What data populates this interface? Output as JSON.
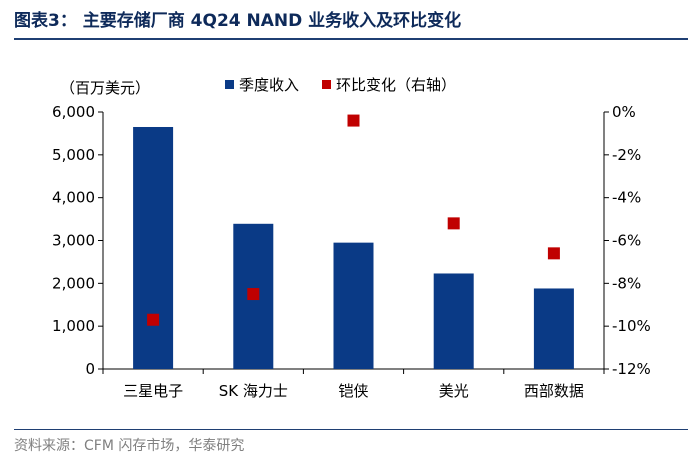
{
  "header": {
    "title": "图表3：  主要存储厂商 4Q24 NAND 业务收入及环比变化"
  },
  "footer": {
    "source": "资料来源：CFM 闪存市场，华泰研究"
  },
  "chart_data": {
    "type": "bar",
    "unit_label": "（百万美元）",
    "categories": [
      "三星电子",
      "SK 海力士",
      "铠侠",
      "美光",
      "西部数据"
    ],
    "series": [
      {
        "name": "季度收入",
        "kind": "bar",
        "axis": "left",
        "color": "#0a3a86",
        "values": [
          5650,
          3390,
          2950,
          2230,
          1880
        ]
      },
      {
        "name": "环比变化（右轴）",
        "kind": "scatter",
        "axis": "right",
        "color": "#c00000",
        "values": [
          -9.7,
          -8.5,
          -0.4,
          -5.2,
          -6.6
        ]
      }
    ],
    "y_left": {
      "min": 0,
      "max": 6000,
      "ticks": [
        0,
        1000,
        2000,
        3000,
        4000,
        5000,
        6000
      ],
      "tick_labels": [
        "0",
        "1,000",
        "2,000",
        "3,000",
        "4,000",
        "5,000",
        "6,000"
      ]
    },
    "y_right": {
      "min": -12,
      "max": 0,
      "ticks": [
        0,
        -2,
        -4,
        -6,
        -8,
        -10,
        -12
      ],
      "tick_labels": [
        "0%",
        "-2%",
        "-4%",
        "-6%",
        "-8%",
        "-10%",
        "-12%"
      ]
    },
    "grid": false,
    "legend": "top"
  }
}
